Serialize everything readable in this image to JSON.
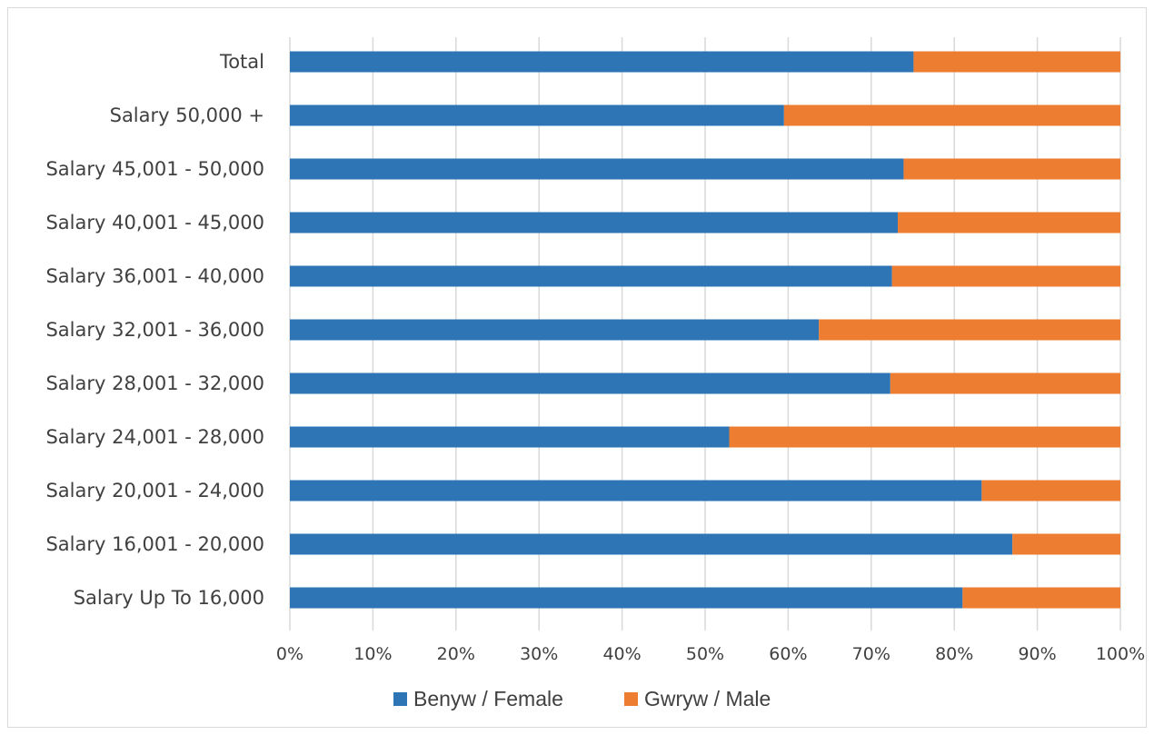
{
  "chart_data": {
    "type": "bar",
    "orientation": "horizontal",
    "stacked": "percent",
    "title": "",
    "xlabel": "",
    "ylabel": "",
    "categories": [
      "Total",
      "Salary 50,000 +",
      "Salary 45,001 - 50,000",
      "Salary 40,001 - 45,000",
      "Salary 36,001 - 40,000",
      "Salary 32,001 - 36,000",
      "Salary 28,001 - 32,000",
      "Salary 24,001 - 28,000",
      "Salary 20,001 - 24,000",
      "Salary 16,001 - 20,000",
      "Salary Up To 16,000"
    ],
    "series": [
      {
        "name": "Benyw / Female",
        "color": "#2e75b6",
        "values": [
          75.1,
          59.5,
          73.9,
          73.2,
          72.5,
          63.7,
          72.3,
          52.9,
          83.3,
          87.0,
          81.0
        ]
      },
      {
        "name": "Gwryw / Male",
        "color": "#ed7d31",
        "values": [
          24.9,
          40.5,
          26.1,
          26.8,
          27.5,
          36.3,
          27.7,
          47.1,
          16.7,
          13.0,
          19.0
        ]
      }
    ],
    "xlim": [
      0,
      100
    ],
    "ticks": [
      "0%",
      "10%",
      "20%",
      "30%",
      "40%",
      "50%",
      "60%",
      "70%",
      "80%",
      "90%",
      "100%"
    ],
    "grid": true,
    "legend_position": "bottom"
  }
}
